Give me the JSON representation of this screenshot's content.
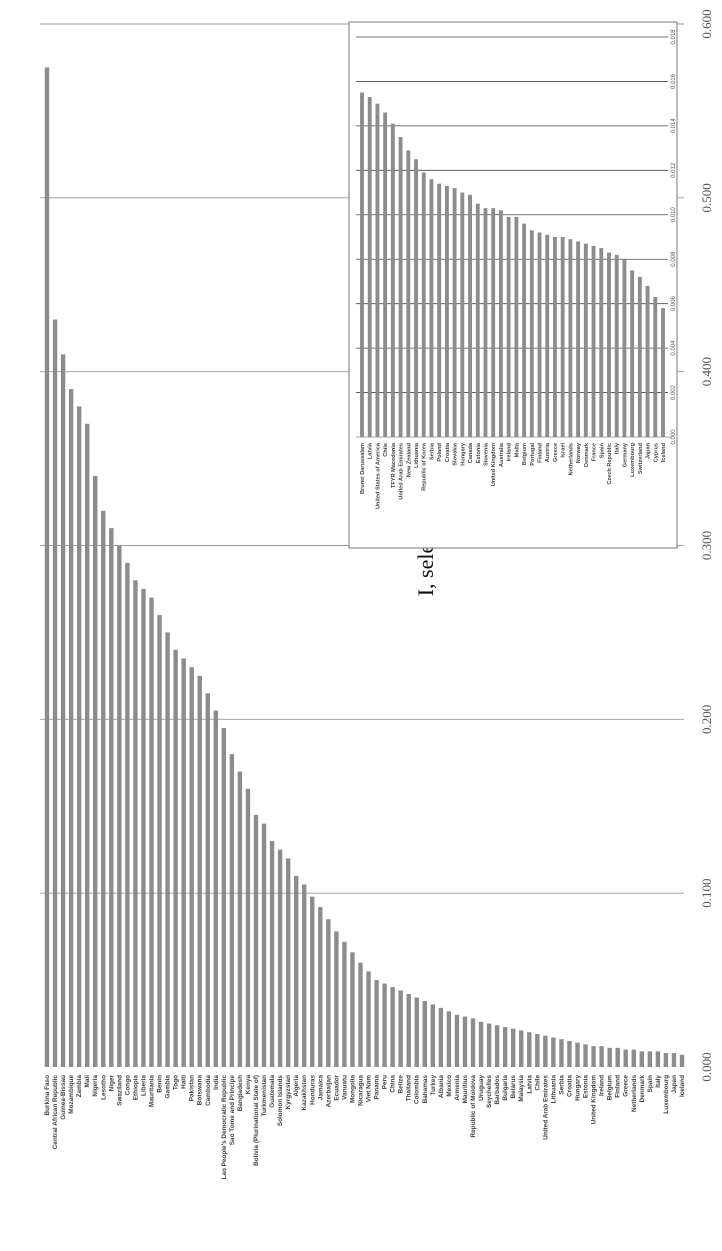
{
  "chart_data": [
    {
      "type": "bar",
      "orientation": "horizontal-rotated",
      "title": "I, selection",
      "xlim": [
        0,
        0.6
      ],
      "tick_labels": [
        "0.000",
        "0.100",
        "0.200",
        "0.300",
        "0.400",
        "0.500",
        "0.600"
      ],
      "grid": true,
      "categories": [
        "Burkina Faso",
        "Central African Republic",
        "Guinea-Bissau",
        "Mozambique",
        "Zambia",
        "Mali",
        "Nigeria",
        "Lesotho",
        "Niger",
        "Swaziland",
        "Congo",
        "Ethiopia",
        "Liberia",
        "Mauritania",
        "Benin",
        "Gambia",
        "Togo",
        "Haiti",
        "Pakistan",
        "Botswana",
        "Cambodia",
        "India",
        "Lao People's Democratic Republic",
        "Sao Tome and Principe",
        "Bangladesh",
        "Kenya",
        "Bolivia (Plurinational State of)",
        "Turkmenistan",
        "Guatemala",
        "Solomon Islands",
        "Kyrgyzstan",
        "Algeria",
        "Kazakhstan",
        "Honduras",
        "Jamaica",
        "Azerbaijan",
        "Ecuador",
        "Vanuatu",
        "Mongolia",
        "Nicaragua",
        "Viet Nam",
        "Panama",
        "Peru",
        "China",
        "Belize",
        "Thailand",
        "Colombia",
        "Bahamas",
        "Turkey",
        "Albania",
        "Mexico",
        "Armenia",
        "Mauritius",
        "Republic of Moldova",
        "Uruguay",
        "Seychelles",
        "Barbados",
        "Bulgaria",
        "Belarus",
        "Malaysia",
        "Latvia",
        "Chile",
        "United Arab Emirates",
        "Lithuania",
        "Serbia",
        "Croatia",
        "Hungary",
        "Estonia",
        "United Kingdom",
        "Ireland",
        "Belgium",
        "Finland",
        "Greece",
        "Netherlands",
        "Denmark",
        "Spain",
        "Italy",
        "Luxembourg",
        "Japan",
        "Iceland"
      ],
      "values": [
        0.575,
        0.43,
        0.41,
        0.39,
        0.38,
        0.37,
        0.34,
        0.32,
        0.31,
        0.3,
        0.29,
        0.28,
        0.275,
        0.27,
        0.26,
        0.25,
        0.24,
        0.235,
        0.23,
        0.225,
        0.215,
        0.205,
        0.195,
        0.18,
        0.17,
        0.16,
        0.145,
        0.14,
        0.13,
        0.125,
        0.12,
        0.11,
        0.105,
        0.098,
        0.092,
        0.085,
        0.078,
        0.072,
        0.066,
        0.06,
        0.055,
        0.05,
        0.048,
        0.046,
        0.044,
        0.042,
        0.04,
        0.038,
        0.036,
        0.034,
        0.032,
        0.03,
        0.029,
        0.028,
        0.026,
        0.025,
        0.024,
        0.023,
        0.022,
        0.021,
        0.02,
        0.019,
        0.018,
        0.017,
        0.016,
        0.015,
        0.014,
        0.013,
        0.012,
        0.012,
        0.011,
        0.011,
        0.01,
        0.01,
        0.009,
        0.009,
        0.009,
        0.008,
        0.008,
        0.007
      ]
    },
    {
      "type": "bar",
      "orientation": "horizontal-rotated",
      "xlim": [
        0,
        0.018
      ],
      "tick_labels": [
        "0.000",
        "0.002",
        "0.004",
        "0.006",
        "0.008",
        "0.010",
        "0.012",
        "0.014",
        "0.016",
        "0.018"
      ],
      "grid": true,
      "categories": [
        "Brunei Darussalam",
        "Latvia",
        "United States of America",
        "Chile",
        "TFYR Macedonia",
        "United Arab Emirates",
        "New Zealand",
        "Lithuania",
        "Republic of Korea",
        "Serbia",
        "Poland",
        "Croatia",
        "Slovakia",
        "Hungary",
        "Canada",
        "Estonia",
        "Slovenia",
        "United Kingdom",
        "Australia",
        "Ireland",
        "Malta",
        "Belgium",
        "Portugal",
        "Finland",
        "Austria",
        "Greece",
        "Israel",
        "Netherlands",
        "Norway",
        "Denmark",
        "France",
        "Spain",
        "Czech Republic",
        "Italy",
        "Germany",
        "Luxembourg",
        "Switzerland",
        "Japan",
        "Cyprus",
        "Iceland"
      ],
      "values": [
        0.0155,
        0.0153,
        0.015,
        0.0146,
        0.0141,
        0.0135,
        0.0129,
        0.0125,
        0.0119,
        0.0116,
        0.0114,
        0.0113,
        0.0112,
        0.011,
        0.0109,
        0.0105,
        0.0103,
        0.0103,
        0.0102,
        0.0099,
        0.0099,
        0.0096,
        0.0093,
        0.0092,
        0.0091,
        0.009,
        0.009,
        0.0089,
        0.0088,
        0.0087,
        0.0086,
        0.0085,
        0.0083,
        0.0082,
        0.008,
        0.0075,
        0.0072,
        0.0068,
        0.0063,
        0.0058
      ]
    }
  ]
}
